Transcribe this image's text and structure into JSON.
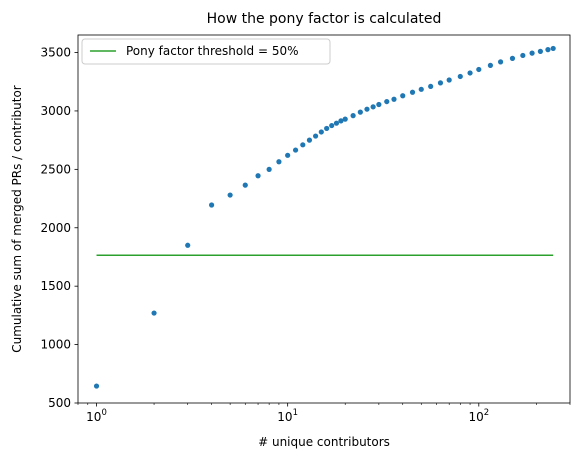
{
  "chart_data": {
    "type": "scatter",
    "title": "How the pony factor is calculated",
    "xlabel": "# unique contributors",
    "ylabel": "Cumulative sum of merged PRs / contributor",
    "x_scale": "log",
    "xlim": [
      0.8,
      300
    ],
    "ylim": [
      500,
      3650
    ],
    "x_ticks": [
      {
        "value": 1,
        "base": "10",
        "exp": "0"
      },
      {
        "value": 10,
        "base": "10",
        "exp": "1"
      },
      {
        "value": 100,
        "base": "10",
        "exp": "2"
      }
    ],
    "y_ticks": [
      {
        "value": 500,
        "label": "500"
      },
      {
        "value": 1000,
        "label": "1000"
      },
      {
        "value": 1500,
        "label": "1500"
      },
      {
        "value": 2000,
        "label": "2000"
      },
      {
        "value": 2500,
        "label": "2500"
      },
      {
        "value": 3000,
        "label": "3000"
      },
      {
        "value": 3500,
        "label": "3500"
      }
    ],
    "grid": false,
    "legend_position": "upper-left",
    "legend": [
      {
        "label": "Pony factor threshold = 50%",
        "color": "#2ca02c",
        "marker": "line"
      }
    ],
    "threshold": {
      "y": 1765,
      "color": "#2ca02c"
    },
    "series": [
      {
        "color": "#1f77b4",
        "marker": "dot",
        "points": [
          [
            1,
            645
          ],
          [
            2,
            1270
          ],
          [
            3,
            1850
          ],
          [
            4,
            2195
          ],
          [
            5,
            2280
          ],
          [
            6,
            2365
          ],
          [
            7,
            2445
          ],
          [
            8,
            2500
          ],
          [
            9,
            2565
          ],
          [
            10,
            2620
          ],
          [
            11,
            2665
          ],
          [
            12,
            2710
          ],
          [
            13,
            2750
          ],
          [
            14,
            2785
          ],
          [
            15,
            2820
          ],
          [
            16,
            2850
          ],
          [
            17,
            2875
          ],
          [
            18,
            2895
          ],
          [
            19,
            2915
          ],
          [
            20,
            2930
          ],
          [
            22,
            2960
          ],
          [
            24,
            2990
          ],
          [
            26,
            3015
          ],
          [
            28,
            3035
          ],
          [
            30,
            3055
          ],
          [
            33,
            3080
          ],
          [
            36,
            3100
          ],
          [
            40,
            3130
          ],
          [
            45,
            3160
          ],
          [
            50,
            3185
          ],
          [
            56,
            3210
          ],
          [
            63,
            3240
          ],
          [
            70,
            3265
          ],
          [
            80,
            3295
          ],
          [
            90,
            3325
          ],
          [
            100,
            3355
          ],
          [
            115,
            3390
          ],
          [
            130,
            3420
          ],
          [
            150,
            3450
          ],
          [
            170,
            3475
          ],
          [
            190,
            3495
          ],
          [
            210,
            3510
          ],
          [
            230,
            3525
          ],
          [
            245,
            3535
          ]
        ]
      }
    ]
  }
}
